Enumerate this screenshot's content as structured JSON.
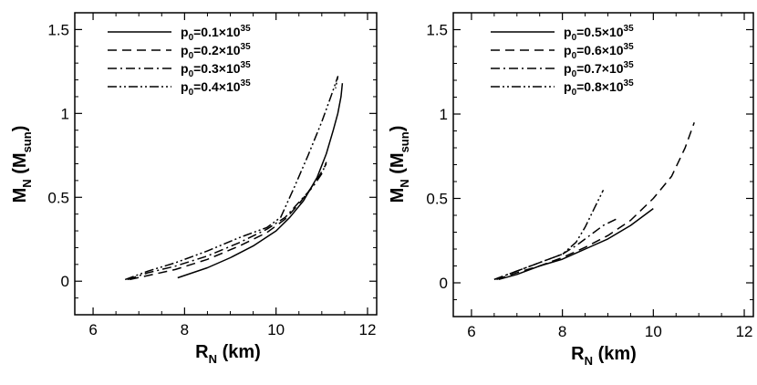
{
  "chart_data": [
    {
      "type": "line",
      "xlabel": "R_N (km)",
      "ylabel": "M_N (M_sun)",
      "xlim": [
        5.6,
        12.2
      ],
      "ylim": [
        -0.2,
        1.6
      ],
      "xticks": [
        "6",
        "8",
        "10",
        "12"
      ],
      "yticks": [
        "0",
        "0.5",
        "1",
        "1.5"
      ],
      "grid": false,
      "legend_position": "top-left",
      "series": [
        {
          "name": "p0=0.1×10^35",
          "dash": "solid",
          "x": [
            7.85,
            8.5,
            9.0,
            9.5,
            10.0,
            10.3,
            10.6,
            10.9,
            11.1,
            11.25,
            11.35,
            11.42,
            11.45
          ],
          "y": [
            0.02,
            0.08,
            0.14,
            0.21,
            0.3,
            0.38,
            0.48,
            0.62,
            0.76,
            0.9,
            1.0,
            1.1,
            1.18
          ]
        },
        {
          "name": "p0=0.2×10^35",
          "dash": "dashed",
          "x": [
            6.8,
            7.3,
            7.8,
            8.5,
            9.2,
            9.8,
            10.2,
            10.5,
            10.75,
            10.95,
            11.1
          ],
          "y": [
            0.01,
            0.04,
            0.07,
            0.13,
            0.21,
            0.29,
            0.37,
            0.46,
            0.55,
            0.63,
            0.7
          ]
        },
        {
          "name": "p0=0.3×10^35",
          "dash": "dashdot",
          "x": [
            6.75,
            7.2,
            7.8,
            8.5,
            9.2,
            9.8,
            10.2,
            10.5,
            10.8,
            11.0,
            11.1
          ],
          "y": [
            0.01,
            0.05,
            0.09,
            0.15,
            0.23,
            0.31,
            0.38,
            0.47,
            0.56,
            0.64,
            0.71
          ]
        },
        {
          "name": "p0=0.4×10^35",
          "dash": "dashdotdot",
          "x": [
            6.7,
            7.2,
            7.8,
            8.5,
            9.2,
            9.8,
            10.1,
            10.4,
            10.7,
            11.0,
            11.2,
            11.35,
            11.3
          ],
          "y": [
            0.01,
            0.06,
            0.11,
            0.18,
            0.26,
            0.32,
            0.38,
            0.56,
            0.75,
            0.95,
            1.1,
            1.22,
            1.15
          ]
        }
      ]
    },
    {
      "type": "line",
      "xlabel": "R_N (km)",
      "ylabel": "M_N (M_sun)",
      "xlim": [
        5.6,
        12.2
      ],
      "ylim": [
        -0.2,
        1.6
      ],
      "xticks": [
        "6",
        "8",
        "10",
        "12"
      ],
      "yticks": [
        "0",
        "0.5",
        "1",
        "1.5"
      ],
      "grid": false,
      "legend_position": "top-left",
      "series": [
        {
          "name": "p0=0.5×10^35",
          "dash": "solid",
          "x": [
            6.6,
            7.0,
            7.5,
            8.0,
            8.5,
            9.0,
            9.5,
            10.0
          ],
          "y": [
            0.02,
            0.05,
            0.1,
            0.14,
            0.2,
            0.26,
            0.34,
            0.44
          ]
        },
        {
          "name": "p0=0.6×10^35",
          "dash": "dashed",
          "x": [
            6.55,
            7.0,
            7.5,
            8.0,
            8.5,
            9.0,
            9.5,
            10.0,
            10.4,
            10.7,
            10.9
          ],
          "y": [
            0.02,
            0.06,
            0.1,
            0.15,
            0.21,
            0.28,
            0.37,
            0.5,
            0.63,
            0.8,
            0.95
          ]
        },
        {
          "name": "p0=0.7×10^35",
          "dash": "dashdot",
          "x": [
            6.5,
            7.0,
            7.5,
            8.0,
            8.3,
            8.6,
            8.9,
            9.2
          ],
          "y": [
            0.02,
            0.07,
            0.12,
            0.17,
            0.22,
            0.28,
            0.34,
            0.38
          ]
        },
        {
          "name": "p0=0.8×10^35",
          "dash": "dashdotdot",
          "x": [
            6.5,
            7.0,
            7.5,
            8.0,
            8.3,
            8.5,
            8.7,
            8.9
          ],
          "y": [
            0.02,
            0.07,
            0.12,
            0.17,
            0.24,
            0.33,
            0.44,
            0.55
          ]
        }
      ]
    }
  ]
}
